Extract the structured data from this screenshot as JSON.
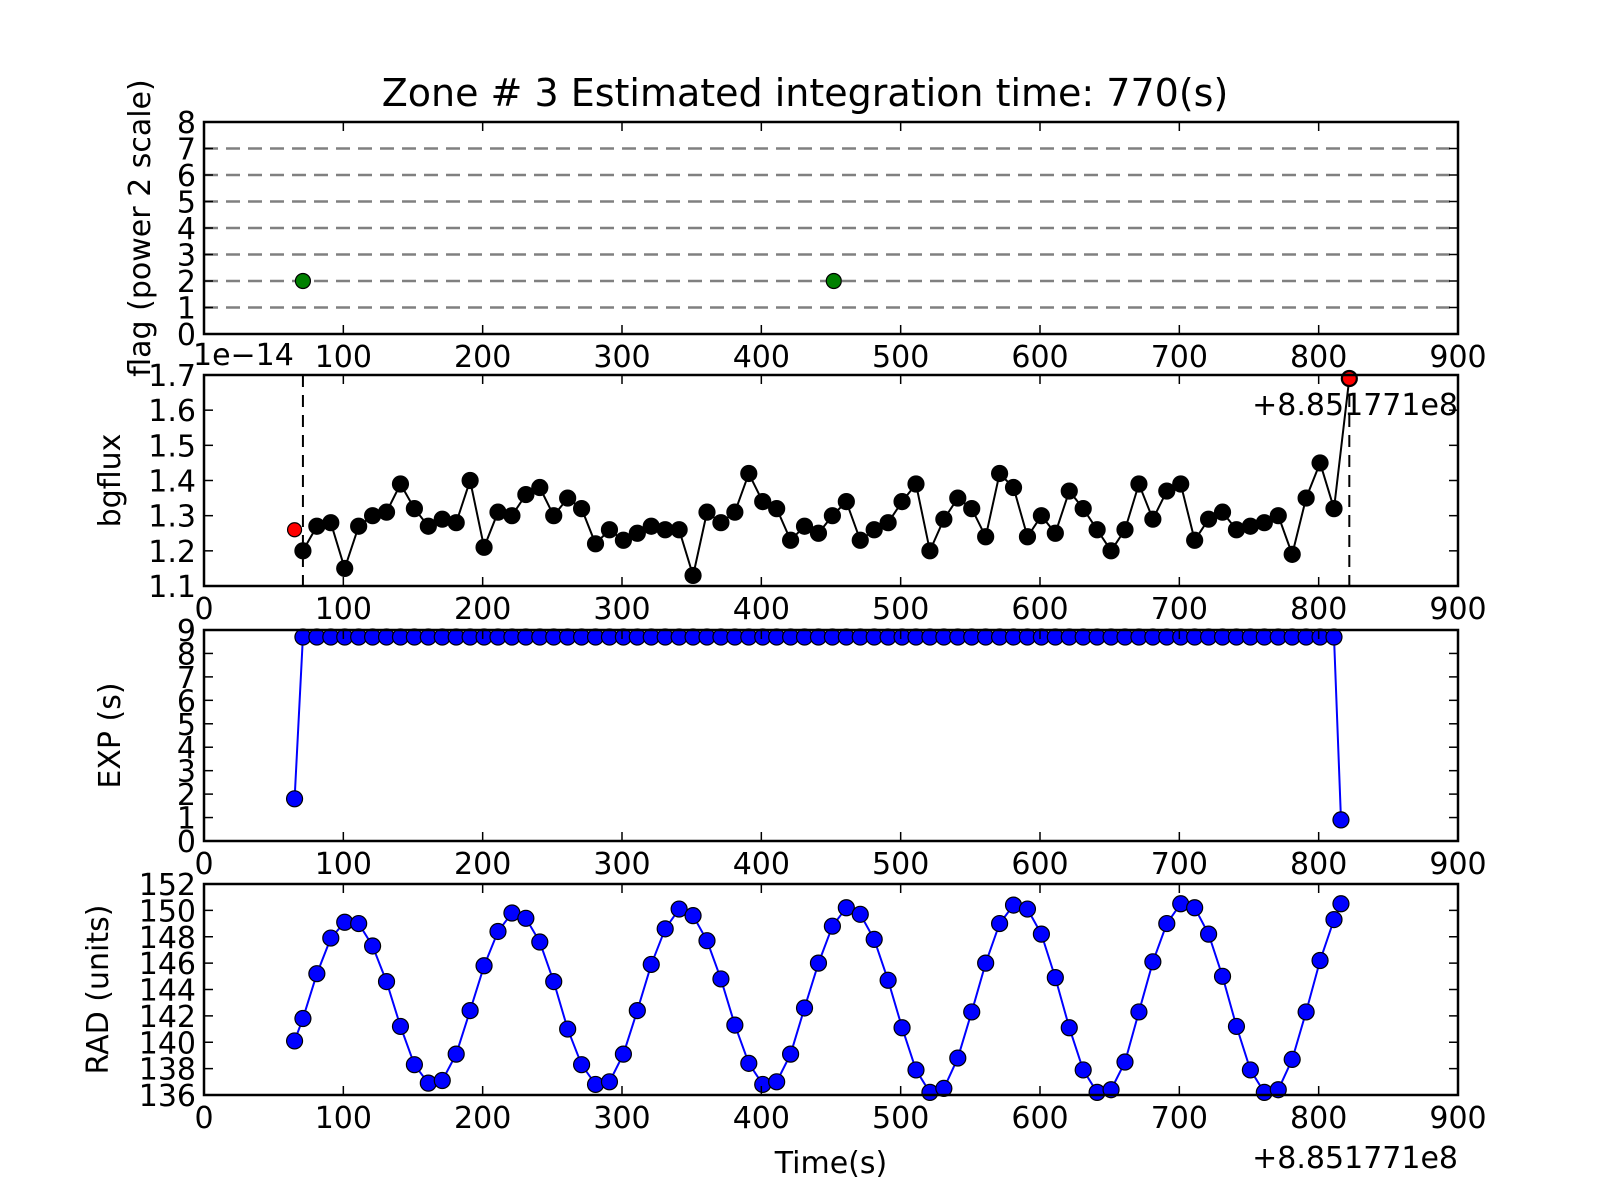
{
  "figure_title": "Zone # 3 Estimated integration time: 770(s)",
  "x_offset_label": "+8.851771e8",
  "colors": {
    "flag_point": "#008000",
    "bgflux_line": "#000000",
    "bgflux_outlier": "#ff0000",
    "exp_series": "#0000ff",
    "rad_series": "#0000ff",
    "flag_gridline": "#808080"
  },
  "chart_data": [
    {
      "type": "scatter",
      "ylabel": "flag (power 2 scale)",
      "xlim": [
        0,
        900
      ],
      "ylim": [
        0,
        8
      ],
      "xticks": [
        100,
        200,
        300,
        400,
        500,
        600,
        700,
        800,
        900
      ],
      "yticks": [
        0,
        1,
        2,
        3,
        4,
        5,
        6,
        7,
        8
      ],
      "hlines": [
        1,
        2,
        3,
        4,
        5,
        6,
        7
      ],
      "series": [
        {
          "x": [
            71,
            452
          ],
          "y": [
            2,
            2
          ]
        }
      ]
    },
    {
      "type": "line",
      "ylabel": "bgflux",
      "scale_label": "1e−14",
      "offset_label": "+8.851771e8",
      "xlim": [
        0,
        900
      ],
      "ylim": [
        1.1,
        1.7
      ],
      "xticks": [
        0,
        100,
        200,
        300,
        400,
        500,
        600,
        700,
        800,
        900
      ],
      "yticks": [
        1.1,
        1.2,
        1.3,
        1.4,
        1.5,
        1.6,
        1.7
      ],
      "vlines": [
        71,
        822
      ],
      "series": [
        {
          "x": [
            71,
            81,
            91,
            101,
            111,
            121,
            131,
            141,
            151,
            161,
            171,
            181,
            191,
            201,
            211,
            221,
            231,
            241,
            251,
            261,
            271,
            281,
            291,
            301,
            311,
            321,
            331,
            341,
            351,
            361,
            371,
            381,
            391,
            401,
            411,
            421,
            431,
            441,
            451,
            461,
            471,
            481,
            491,
            501,
            511,
            521,
            531,
            541,
            551,
            561,
            571,
            581,
            591,
            601,
            611,
            621,
            631,
            641,
            651,
            661,
            671,
            681,
            691,
            701,
            711,
            721,
            731,
            741,
            751,
            761,
            771,
            781,
            791,
            801,
            811,
            822
          ],
          "y": [
            1.2,
            1.27,
            1.28,
            1.15,
            1.27,
            1.3,
            1.31,
            1.39,
            1.32,
            1.27,
            1.29,
            1.28,
            1.4,
            1.21,
            1.31,
            1.3,
            1.36,
            1.38,
            1.3,
            1.35,
            1.32,
            1.22,
            1.26,
            1.23,
            1.25,
            1.27,
            1.26,
            1.26,
            1.13,
            1.31,
            1.28,
            1.31,
            1.42,
            1.34,
            1.32,
            1.23,
            1.27,
            1.25,
            1.3,
            1.34,
            1.23,
            1.26,
            1.28,
            1.34,
            1.39,
            1.2,
            1.29,
            1.35,
            1.32,
            1.24,
            1.42,
            1.38,
            1.24,
            1.3,
            1.25,
            1.37,
            1.32,
            1.26,
            1.2,
            1.26,
            1.39,
            1.29,
            1.37,
            1.39,
            1.23,
            1.29,
            1.31,
            1.26,
            1.27,
            1.28,
            1.3,
            1.19,
            1.35,
            1.45,
            1.32,
            1.69
          ]
        }
      ],
      "outliers": {
        "x": [
          65,
          822
        ],
        "y": [
          1.26,
          1.69
        ]
      }
    },
    {
      "type": "line",
      "ylabel": "EXP (s)",
      "xlim": [
        0,
        900
      ],
      "ylim": [
        0,
        9
      ],
      "xticks": [
        0,
        100,
        200,
        300,
        400,
        500,
        600,
        700,
        800,
        900
      ],
      "yticks": [
        0,
        1,
        2,
        3,
        4,
        5,
        6,
        7,
        8,
        9
      ],
      "series": [
        {
          "x": [
            65,
            71,
            81,
            91,
            101,
            111,
            121,
            131,
            141,
            151,
            161,
            171,
            181,
            191,
            201,
            211,
            221,
            231,
            241,
            251,
            261,
            271,
            281,
            291,
            301,
            311,
            321,
            331,
            341,
            351,
            361,
            371,
            381,
            391,
            401,
            411,
            421,
            431,
            441,
            451,
            461,
            471,
            481,
            491,
            501,
            511,
            521,
            531,
            541,
            551,
            561,
            571,
            581,
            591,
            601,
            611,
            621,
            631,
            641,
            651,
            661,
            671,
            681,
            691,
            701,
            711,
            721,
            731,
            741,
            751,
            761,
            771,
            781,
            791,
            801,
            811,
            816
          ],
          "y": [
            1.8,
            8.7,
            8.7,
            8.7,
            8.7,
            8.7,
            8.7,
            8.7,
            8.7,
            8.7,
            8.7,
            8.7,
            8.7,
            8.7,
            8.7,
            8.7,
            8.7,
            8.7,
            8.7,
            8.7,
            8.7,
            8.7,
            8.7,
            8.7,
            8.7,
            8.7,
            8.7,
            8.7,
            8.7,
            8.7,
            8.7,
            8.7,
            8.7,
            8.7,
            8.7,
            8.7,
            8.7,
            8.7,
            8.7,
            8.7,
            8.7,
            8.7,
            8.7,
            8.7,
            8.7,
            8.7,
            8.7,
            8.7,
            8.7,
            8.7,
            8.7,
            8.7,
            8.7,
            8.7,
            8.7,
            8.7,
            8.7,
            8.7,
            8.7,
            8.7,
            8.7,
            8.7,
            8.7,
            8.7,
            8.7,
            8.7,
            8.7,
            8.7,
            8.7,
            8.7,
            8.7,
            8.7,
            8.7,
            8.7,
            8.7,
            8.7,
            0.9
          ]
        }
      ]
    },
    {
      "type": "line",
      "ylabel": "RAD (units)",
      "xlabel": "Time(s)",
      "offset_label": "+8.851771e8",
      "xlim": [
        0,
        900
      ],
      "ylim": [
        136,
        152
      ],
      "xticks": [
        0,
        100,
        200,
        300,
        400,
        500,
        600,
        700,
        800,
        900
      ],
      "yticks": [
        136,
        138,
        140,
        142,
        144,
        146,
        148,
        150,
        152
      ],
      "series": [
        {
          "x": [
            65,
            71,
            81,
            91,
            101,
            111,
            121,
            131,
            141,
            151,
            161,
            171,
            181,
            191,
            201,
            211,
            221,
            231,
            241,
            251,
            261,
            271,
            281,
            291,
            301,
            311,
            321,
            331,
            341,
            351,
            361,
            371,
            381,
            391,
            401,
            411,
            421,
            431,
            441,
            451,
            461,
            471,
            481,
            491,
            501,
            511,
            521,
            531,
            541,
            551,
            561,
            571,
            581,
            591,
            601,
            611,
            621,
            631,
            641,
            651,
            661,
            671,
            681,
            691,
            701,
            711,
            721,
            731,
            741,
            751,
            761,
            771,
            781,
            791,
            801,
            811,
            816
          ],
          "y": [
            140.1,
            141.8,
            145.2,
            147.9,
            149.1,
            149.0,
            147.3,
            144.6,
            141.2,
            138.3,
            136.9,
            137.1,
            139.1,
            142.4,
            145.8,
            148.4,
            149.8,
            149.4,
            147.6,
            144.6,
            141.0,
            138.3,
            136.8,
            137.0,
            139.1,
            142.4,
            145.9,
            148.6,
            150.1,
            149.6,
            147.7,
            144.8,
            141.3,
            138.4,
            136.8,
            137.0,
            139.1,
            142.6,
            146.0,
            148.8,
            150.2,
            149.7,
            147.8,
            144.7,
            141.1,
            137.9,
            136.2,
            136.5,
            138.8,
            142.3,
            146.0,
            149.0,
            150.4,
            150.1,
            148.2,
            144.9,
            141.1,
            137.9,
            136.2,
            136.4,
            138.5,
            142.3,
            146.1,
            149.0,
            150.5,
            150.2,
            148.2,
            145.0,
            141.2,
            137.9,
            136.2,
            136.4,
            138.7,
            142.3,
            146.2,
            149.3,
            150.5
          ]
        }
      ]
    }
  ]
}
